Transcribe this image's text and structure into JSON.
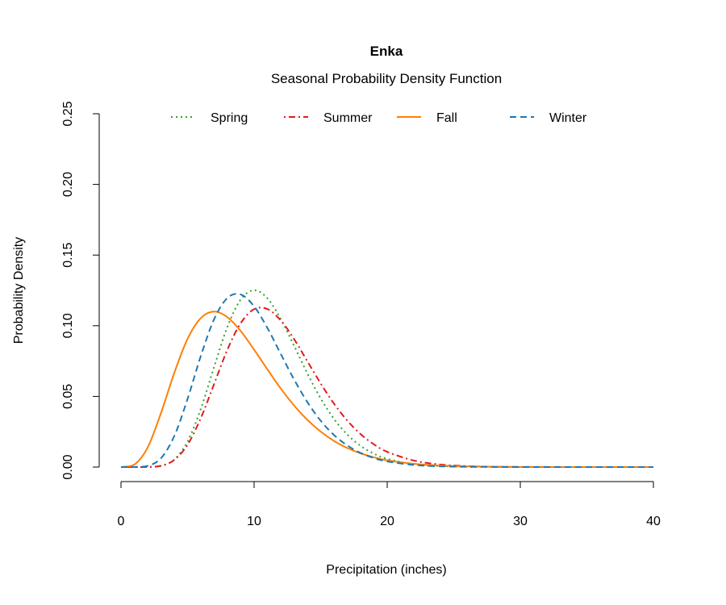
{
  "chart_data": {
    "type": "line",
    "title": "Enka",
    "subtitle": "Seasonal Probability Density Function",
    "xlabel": "Precipitation (inches)",
    "ylabel": "Probability Density",
    "xlim": [
      0,
      40
    ],
    "ylim": [
      0,
      0.25
    ],
    "xticks": [
      "0",
      "10",
      "20",
      "30",
      "40"
    ],
    "yticks": [
      "0.00",
      "0.05",
      "0.10",
      "0.15",
      "0.20",
      "0.25"
    ],
    "grid": false,
    "legend_position": "top",
    "x": [
      0,
      1,
      2,
      3,
      4,
      5,
      6,
      7,
      8,
      9,
      10,
      11,
      12,
      13,
      14,
      15,
      16,
      17,
      18,
      19,
      20,
      22,
      24,
      26,
      28,
      30,
      35,
      40
    ],
    "series": [
      {
        "name": "Spring",
        "color": "#33a02c",
        "style": "dotted",
        "values": [
          0,
          0,
          4e-05,
          0.0008,
          0.0053,
          0.0181,
          0.0413,
          0.071,
          0.0993,
          0.1186,
          0.1251,
          0.1194,
          0.1048,
          0.0859,
          0.0663,
          0.0486,
          0.0341,
          0.023,
          0.015,
          0.0095,
          0.0058,
          0.002,
          0.0007,
          0.0002,
          0.0001,
          0,
          0,
          0
        ]
      },
      {
        "name": "Summer",
        "color": "#e31a1c",
        "style": "dotdash",
        "values": [
          0,
          0,
          0.0001,
          0.0009,
          0.005,
          0.0158,
          0.0347,
          0.0589,
          0.0832,
          0.1019,
          0.1117,
          0.1118,
          0.1038,
          0.0906,
          0.0749,
          0.0592,
          0.0449,
          0.0329,
          0.0233,
          0.0161,
          0.0108,
          0.0046,
          0.0018,
          0.0007,
          0.0002,
          0.0001,
          0,
          0
        ]
      },
      {
        "name": "Fall",
        "color": "#ff7f00",
        "style": "solid",
        "values": [
          0,
          0.0017,
          0.0138,
          0.0381,
          0.0665,
          0.0907,
          0.1054,
          0.11,
          0.106,
          0.0962,
          0.0831,
          0.0691,
          0.0556,
          0.0436,
          0.0334,
          0.0251,
          0.0185,
          0.0135,
          0.0097,
          0.0069,
          0.0048,
          0.0023,
          0.0011,
          0.0005,
          0.0002,
          0.0001,
          0,
          0
        ]
      },
      {
        "name": "Winter",
        "color": "#1f78b4",
        "style": "dashed",
        "values": [
          0,
          0,
          0.0008,
          0.0062,
          0.0219,
          0.0482,
          0.0787,
          0.1047,
          0.1197,
          0.1221,
          0.1137,
          0.0984,
          0.0801,
          0.062,
          0.046,
          0.0328,
          0.0227,
          0.0153,
          0.01,
          0.0064,
          0.004,
          0.0015,
          0.0005,
          0.0002,
          0.0001,
          0,
          0,
          0
        ]
      }
    ]
  }
}
